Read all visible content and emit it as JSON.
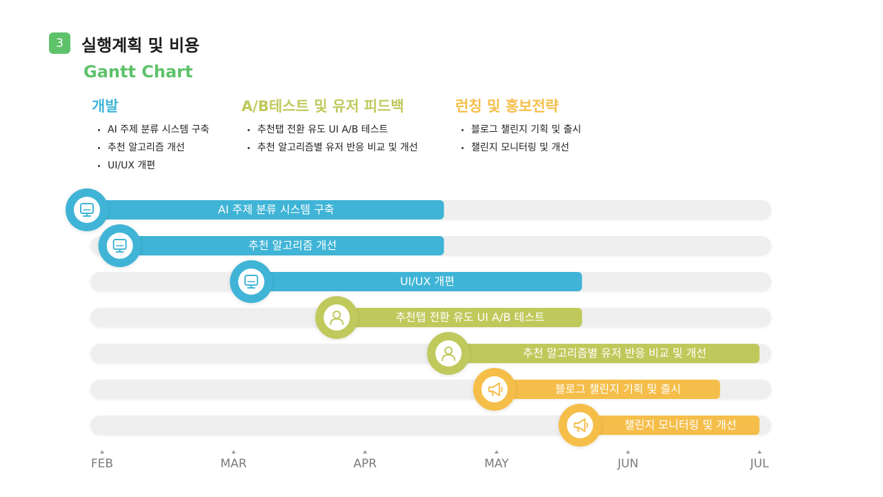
{
  "header": {
    "section_number": "3",
    "title": "실행계획 및 비용",
    "subtitle": "Gantt Chart"
  },
  "colors": {
    "green_title": "#5ec26a",
    "dev": "#3fb4d6",
    "test": "#bfc95b",
    "launch": "#f5be4a",
    "track": "#efefef"
  },
  "categories": [
    {
      "title": "개발",
      "color": "#3fb4d6",
      "items": [
        "AI 주제 분류 시스템 구축",
        "추천 알고리즘 개선",
        "UI/UX 개편"
      ]
    },
    {
      "title": "A/B테스트 및 유저 피드백",
      "color": "#bfc95b",
      "items": [
        "추천탭 전환 유도 UI A/B 테스트",
        "추천 알고리즘별 유저 반응 비교 및 개선"
      ]
    },
    {
      "title": "런칭 및 홍보전략",
      "color": "#f5be4a",
      "items": [
        "블로그 챌린지 기획 및 출시",
        "챌린지 모니터링 및 개선"
      ]
    }
  ],
  "chart_data": {
    "type": "gantt",
    "months": [
      "FEB",
      "MAR",
      "APR",
      "MAY",
      "JUN",
      "JUL"
    ],
    "range_months": [
      0,
      5
    ],
    "tasks": [
      {
        "label": "AI 주제 분류 시스템 구축",
        "start": 0.0,
        "end": 2.6,
        "category": "개발",
        "icon": "monitor-icon"
      },
      {
        "label": "추천 알고리즘 개선",
        "start": 0.25,
        "end": 2.6,
        "category": "개발",
        "icon": "monitor-icon"
      },
      {
        "label": "UI/UX 개편",
        "start": 1.25,
        "end": 3.65,
        "category": "개발",
        "icon": "monitor-icon"
      },
      {
        "label": "추천탭 전환 유도 UI A/B 테스트",
        "start": 1.9,
        "end": 3.65,
        "category": "A/B테스트 및 유저 피드백",
        "icon": "user-icon"
      },
      {
        "label": "추천 알고리즘별 유저 반응 비교 및 개선",
        "start": 2.75,
        "end": 5.0,
        "category": "A/B테스트 및 유저 피드백",
        "icon": "user-icon"
      },
      {
        "label": "블로그 챌린지 기획 및 출시",
        "start": 3.1,
        "end": 4.7,
        "category": "런칭 및 홍보전략",
        "icon": "megaphone-icon"
      },
      {
        "label": "챌린지 모니터링 및 개선",
        "start": 3.75,
        "end": 5.0,
        "category": "런칭 및 홍보전략",
        "icon": "megaphone-icon"
      }
    ]
  }
}
